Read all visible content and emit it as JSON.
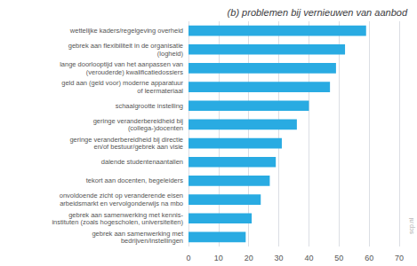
{
  "chart_data": {
    "type": "bar",
    "orientation": "horizontal",
    "title": "(b) problemen bij vernieuwen van aanbod",
    "categories": [
      "gebrek aan samenwerking met\nbedrijven/instellingen",
      "gebrek aan samenwerking met kennis-\ninstituten (zoals hogescholen, universiteiten)",
      "onvoldoende zicht op veranderende eisen\narbeidsmarkt en vervolgonderwijs na mbo",
      "tekort aan docenten, begeleiders",
      "dalende studentenaantallen",
      "geringe veranderbereidheid bij directie\nen/of bestuur/gebrek aan visie",
      "geringe veranderbereidheid bij\n(collega-)docenten",
      "schaalgrootte instelling",
      "geld aan (geld voor) moderne apparatuur\nof leermateriaal",
      "lange doorlooptijd van het aanpassen van\n(verouderde) kwalificatiedossiers",
      "gebrek aan flexibiliteit in de organisatie\n(logheid)",
      "wettelijke kaders/regelgeving overheid"
    ],
    "values": [
      19,
      21,
      24,
      27,
      29,
      31,
      36,
      40,
      47,
      49,
      52,
      59
    ],
    "color": "#29abe2",
    "xlim": [
      0,
      70
    ],
    "xticks": [
      0,
      10,
      20,
      30,
      40,
      50,
      60,
      70
    ],
    "grid": true,
    "annotations": [
      "scp.nl"
    ]
  }
}
